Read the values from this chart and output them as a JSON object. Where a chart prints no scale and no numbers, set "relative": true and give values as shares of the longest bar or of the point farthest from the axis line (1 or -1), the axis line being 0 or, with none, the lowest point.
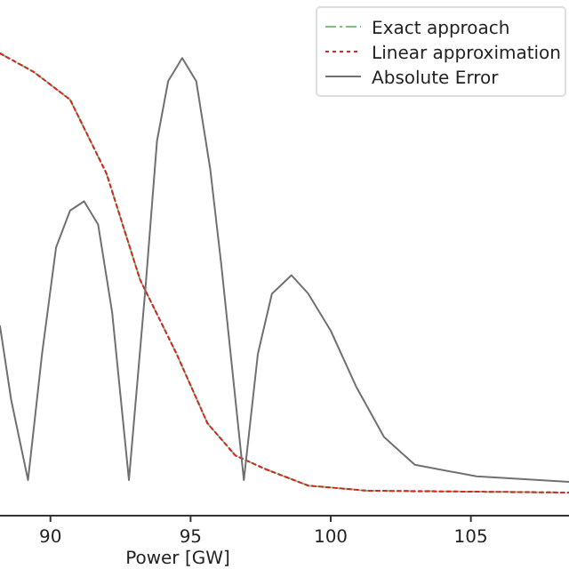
{
  "chart_data": {
    "type": "line",
    "relative": true,
    "xlabel": "Power [GW]",
    "xlim": [
      88.2,
      108.5
    ],
    "xticks": [
      90,
      95,
      100,
      105
    ],
    "legend": "top right",
    "series": [
      {
        "name": "Exact approach",
        "color": "#7fbf7f",
        "line_style": "dashed",
        "x": [
          88.2,
          89.4,
          90.7,
          92,
          93.2,
          94.5,
          95.6,
          96.6,
          97.7,
          99.2,
          101.3,
          108.5
        ],
        "values": [
          1,
          0.96,
          0.9,
          0.74,
          0.51,
          0.35,
          0.2,
          0.13,
          0.1,
          0.065,
          0.054,
          0.05
        ]
      },
      {
        "name": "Linear approximation",
        "color": "#d62728",
        "line_style": "dotted",
        "x": [
          88.2,
          89.4,
          90.7,
          92,
          93.2,
          94.5,
          95.6,
          96.6,
          97.7,
          99.2,
          101.3,
          108.5
        ],
        "values": [
          1,
          0.96,
          0.9,
          0.74,
          0.51,
          0.35,
          0.2,
          0.13,
          0.1,
          0.065,
          0.054,
          0.05
        ]
      },
      {
        "name": "Absolute Error",
        "color": "#707070",
        "line_style": "solid",
        "x": [
          88.2,
          88.6,
          89.2,
          89.7,
          90.2,
          90.7,
          91.2,
          91.7,
          92.2,
          92.8,
          93.4,
          93.8,
          94.2,
          94.7,
          95.2,
          95.7,
          96.1,
          96.9,
          97.4,
          97.9,
          98.6,
          99.2,
          100,
          100.9,
          101.9,
          103,
          105.2,
          108.5
        ],
        "values": [
          0.41,
          0.25,
          0.077,
          0.35,
          0.58,
          0.66,
          0.68,
          0.63,
          0.44,
          0.077,
          0.5,
          0.81,
          0.94,
          0.99,
          0.94,
          0.75,
          0.54,
          0.077,
          0.35,
          0.48,
          0.52,
          0.48,
          0.4,
          0.28,
          0.17,
          0.11,
          0.085,
          0.073
        ]
      }
    ]
  }
}
